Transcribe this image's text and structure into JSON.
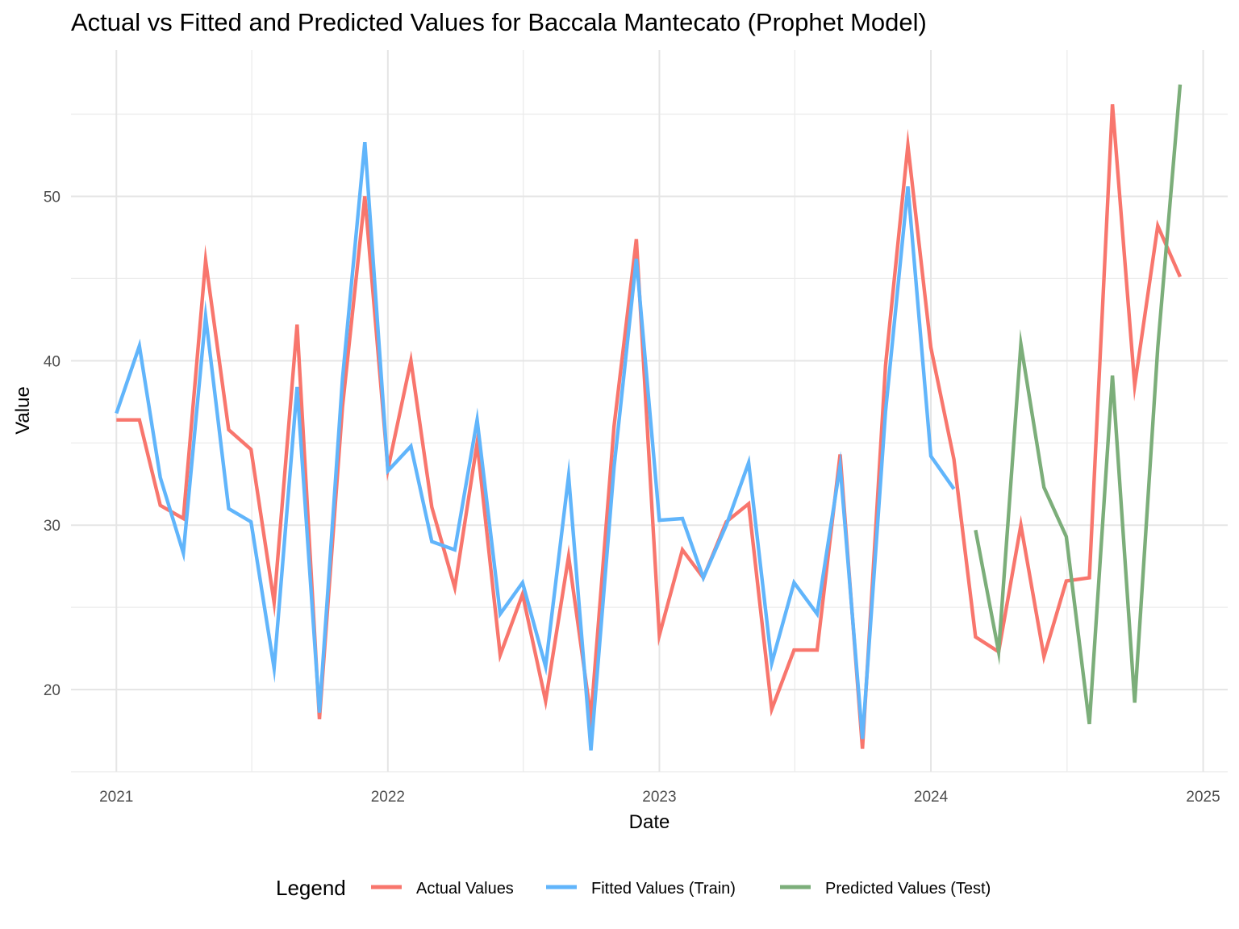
{
  "chart_data": {
    "type": "line",
    "title": "Actual vs Fitted and Predicted Values for Baccala Mantecato (Prophet Model)",
    "xlabel": "Date",
    "ylabel": "Value",
    "xlim": [
      "2020-11-01",
      "2025-02-03"
    ],
    "ylim": [
      15,
      58.9
    ],
    "x_ticks": [
      "2021",
      "2022",
      "2023",
      "2024",
      "2025"
    ],
    "y_ticks": [
      20,
      30,
      40,
      50
    ],
    "grid": true,
    "legend_title": "Legend",
    "legend_position": "bottom",
    "series": [
      {
        "name": "Actual Values",
        "color": "#F8766D",
        "x": [
          "2021-01-01",
          "2021-02-01",
          "2021-03-01",
          "2021-04-01",
          "2021-05-01",
          "2021-06-01",
          "2021-07-01",
          "2021-08-01",
          "2021-09-01",
          "2021-10-01",
          "2021-11-01",
          "2021-12-01",
          "2022-01-01",
          "2022-02-01",
          "2022-03-01",
          "2022-04-01",
          "2022-05-01",
          "2022-06-01",
          "2022-07-01",
          "2022-08-01",
          "2022-09-01",
          "2022-10-01",
          "2022-11-01",
          "2022-12-01",
          "2023-01-01",
          "2023-02-01",
          "2023-03-01",
          "2023-04-01",
          "2023-05-01",
          "2023-06-01",
          "2023-07-01",
          "2023-08-01",
          "2023-09-01",
          "2023-10-01",
          "2023-11-01",
          "2023-12-01",
          "2024-01-01",
          "2024-02-01",
          "2024-03-01",
          "2024-04-01",
          "2024-05-01",
          "2024-06-01",
          "2024-07-01",
          "2024-08-01",
          "2024-09-01",
          "2024-10-01",
          "2024-11-01",
          "2024-12-01"
        ],
        "y": [
          36.4,
          36.4,
          31.2,
          30.4,
          46.1,
          35.8,
          34.6,
          25.3,
          42.2,
          18.2,
          37.2,
          50.0,
          33.4,
          40.0,
          31.1,
          26.2,
          35.0,
          22.1,
          25.8,
          19.3,
          28.1,
          18.3,
          36.0,
          47.4,
          23.3,
          28.5,
          26.8,
          30.2,
          31.3,
          18.8,
          22.4,
          22.4,
          34.3,
          16.4,
          39.7,
          53.1,
          40.8,
          34.0,
          23.2,
          22.3,
          30.0,
          22.0,
          26.6,
          26.8,
          55.6,
          38.5,
          48.2,
          45.1
        ]
      },
      {
        "name": "Fitted Values (Train)",
        "color": "#61B5FB",
        "x": [
          "2021-01-01",
          "2021-02-01",
          "2021-03-01",
          "2021-04-01",
          "2021-05-01",
          "2021-06-01",
          "2021-07-01",
          "2021-08-01",
          "2021-09-01",
          "2021-10-01",
          "2021-11-01",
          "2021-12-01",
          "2022-01-01",
          "2022-02-01",
          "2022-03-01",
          "2022-04-01",
          "2022-05-01",
          "2022-06-01",
          "2022-07-01",
          "2022-08-01",
          "2022-09-01",
          "2022-10-01",
          "2022-11-01",
          "2022-12-01",
          "2023-01-01",
          "2023-02-01",
          "2023-03-01",
          "2023-04-01",
          "2023-05-01",
          "2023-06-01",
          "2023-07-01",
          "2023-08-01",
          "2023-09-01",
          "2023-10-01",
          "2023-11-01",
          "2023-12-01",
          "2024-01-01",
          "2024-02-01"
        ],
        "y": [
          36.8,
          40.9,
          32.9,
          28.3,
          42.7,
          31.0,
          30.2,
          21.3,
          38.4,
          18.6,
          38.9,
          53.3,
          33.3,
          34.8,
          29.0,
          28.5,
          36.4,
          24.6,
          26.5,
          21.4,
          33.0,
          16.3,
          33.5,
          46.2,
          30.3,
          30.4,
          26.8,
          30.0,
          33.8,
          21.6,
          26.5,
          24.6,
          33.6,
          17.0,
          36.9,
          50.6,
          34.2,
          32.2
        ]
      },
      {
        "name": "Predicted Values (Test)",
        "color": "#7CAE7A",
        "x": [
          "2024-03-01",
          "2024-04-01",
          "2024-05-01",
          "2024-06-01",
          "2024-07-01",
          "2024-08-01",
          "2024-09-01",
          "2024-10-01",
          "2024-11-01",
          "2024-12-01"
        ],
        "y": [
          29.7,
          22.3,
          41.0,
          32.3,
          29.3,
          17.9,
          39.1,
          19.2,
          40.8,
          56.8
        ]
      }
    ]
  }
}
